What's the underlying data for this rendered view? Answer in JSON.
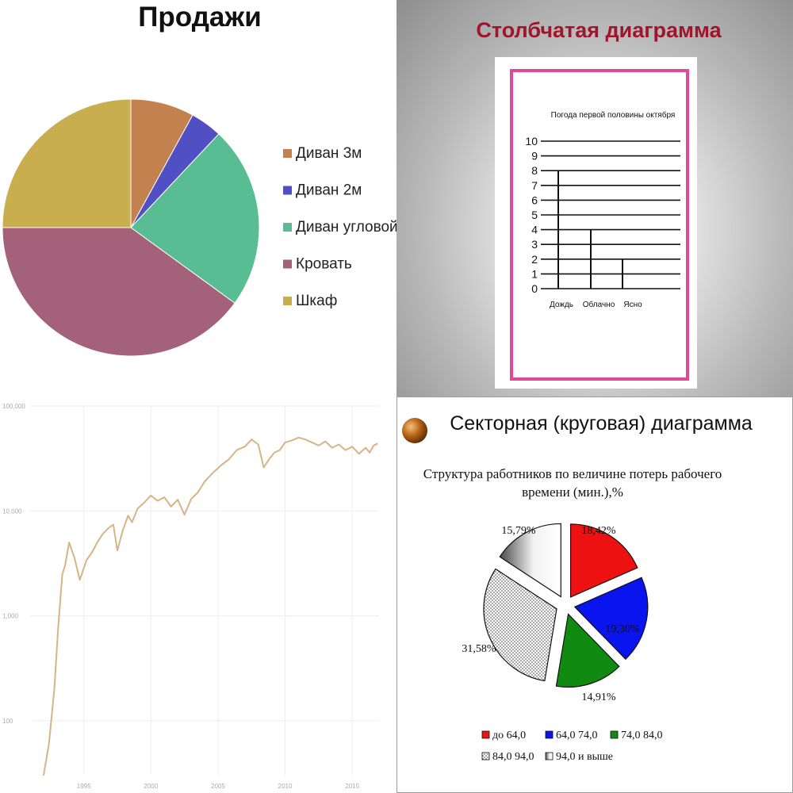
{
  "colors": {
    "sales": [
      "#c3814f",
      "#5050c4",
      "#59bd93",
      "#a3617a",
      "#c8ae4e"
    ],
    "weather_frame": "#e0489a",
    "weather_title": "#a0142c",
    "index_line": "#d6b487",
    "sector": [
      "#ee1111",
      "#0a14ee",
      "#118a11",
      "#dcdcdc",
      "#f0f0f0"
    ],
    "bullet": "#b8661a"
  },
  "chart_data": [
    {
      "id": "sales",
      "type": "pie",
      "title": "Продажи",
      "legend_position": "right",
      "slices": [
        {
          "label": "Диван 3м",
          "value": 8
        },
        {
          "label": "Диван 2м",
          "value": 4
        },
        {
          "label": "Диван угловой",
          "value": 23
        },
        {
          "label": "Кровать",
          "value": 40
        },
        {
          "label": "Шкаф",
          "value": 25
        }
      ]
    },
    {
      "id": "weather",
      "type": "bar",
      "title": "Столбчатая диаграмма",
      "subtitle": "Погода первой половины октября",
      "categories": [
        "Дождь",
        "Облачно",
        "Ясно"
      ],
      "values": [
        8,
        4,
        2
      ],
      "ylim": [
        0,
        10
      ],
      "yticks": [
        "0",
        "1",
        "2",
        "3",
        "4",
        "5",
        "6",
        "7",
        "8",
        "9",
        "10"
      ],
      "grid": true
    },
    {
      "id": "index",
      "type": "line",
      "yscale": "log",
      "ylim": [
        30,
        100000
      ],
      "xlim": [
        1991,
        2017
      ],
      "yticks": [
        {
          "v": 100,
          "label": "100"
        },
        {
          "v": 1000,
          "label": "1,000"
        },
        {
          "v": 10000,
          "label": "10,000"
        },
        {
          "v": 100000,
          "label": "100,000"
        }
      ],
      "xticks": [
        {
          "v": 1995,
          "label": "1995"
        },
        {
          "v": 2000,
          "label": "2000"
        },
        {
          "v": 2005,
          "label": "2005"
        },
        {
          "v": 2010,
          "label": "2010"
        },
        {
          "v": 2015,
          "label": "2015"
        }
      ],
      "grid": true,
      "x": [
        1992.0,
        1992.4,
        1992.8,
        1993.1,
        1993.4,
        1993.6,
        1993.9,
        1994.3,
        1994.7,
        1995.2,
        1995.6,
        1996.0,
        1996.4,
        1996.8,
        1997.2,
        1997.5,
        1997.9,
        1998.3,
        1998.6,
        1999.0,
        1999.5,
        2000.0,
        2000.5,
        2001.0,
        2001.5,
        2002.0,
        2002.5,
        2003.0,
        2003.5,
        2004.0,
        2004.6,
        2005.2,
        2005.8,
        2006.4,
        2007.0,
        2007.5,
        2008.0,
        2008.4,
        2008.8,
        2009.2,
        2009.6,
        2010.0,
        2010.5,
        2011.0,
        2011.5,
        2012.0,
        2012.5,
        2013.0,
        2013.5,
        2014.0,
        2014.5,
        2015.0,
        2015.5,
        2016.0,
        2016.3,
        2016.6,
        2016.9
      ],
      "y": [
        30,
        60,
        200,
        800,
        2500,
        3000,
        5000,
        3600,
        2200,
        3400,
        4000,
        5000,
        6000,
        6800,
        7400,
        4200,
        6500,
        9000,
        7800,
        10500,
        12000,
        14000,
        12500,
        13500,
        11000,
        12800,
        9200,
        13000,
        15000,
        19000,
        23000,
        27000,
        31000,
        38000,
        41000,
        48000,
        43000,
        26000,
        31000,
        36000,
        38000,
        45000,
        47000,
        50000,
        48000,
        45000,
        42000,
        46000,
        40000,
        43000,
        38000,
        41000,
        35000,
        40000,
        36000,
        42000,
        44000
      ]
    },
    {
      "id": "sector",
      "type": "pie",
      "title": "Секторная (круговая) диаграмма",
      "subtitle_line1": "Структура работников по величине потерь рабочего",
      "subtitle_line2": "времени (мин.),%",
      "legend_position": "bottom",
      "slices": [
        {
          "label": "до 64,0",
          "value": 18.42,
          "value_label": "18,42%",
          "pattern": "solid"
        },
        {
          "label": "64,0 74,0",
          "value": 19.3,
          "value_label": "19,30%",
          "pattern": "solid"
        },
        {
          "label": "74,0 84,0",
          "value": 14.91,
          "value_label": "14,91%",
          "pattern": "solid"
        },
        {
          "label": "84,0 94,0",
          "value": 31.58,
          "value_label": "31,58%",
          "pattern": "dots"
        },
        {
          "label": "94,0 и выше",
          "value": 15.79,
          "value_label": "15,79%",
          "pattern": "gradient"
        }
      ]
    }
  ]
}
